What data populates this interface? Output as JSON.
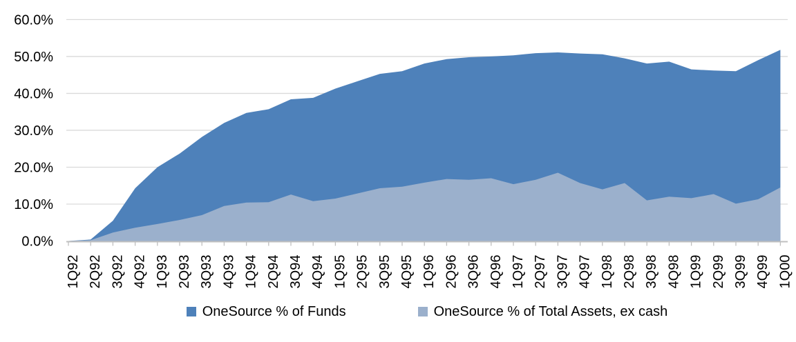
{
  "chart_data": {
    "type": "area",
    "title": "",
    "categories": [
      "1Q92",
      "2Q92",
      "3Q92",
      "4Q92",
      "1Q93",
      "2Q93",
      "3Q93",
      "4Q93",
      "1Q94",
      "2Q94",
      "3Q94",
      "4Q94",
      "1Q95",
      "2Q95",
      "3Q95",
      "4Q95",
      "1Q96",
      "2Q96",
      "3Q96",
      "4Q96",
      "1Q97",
      "2Q97",
      "3Q97",
      "4Q97",
      "1Q98",
      "2Q98",
      "3Q98",
      "4Q98",
      "1Q99",
      "2Q99",
      "3Q99",
      "4Q99",
      "1Q00"
    ],
    "series": [
      {
        "name": "OneSource % of Funds",
        "color": "#4E81BA",
        "values": [
          0,
          0.4,
          5.5,
          14.3,
          20.0,
          23.7,
          28.2,
          32.0,
          34.7,
          35.7,
          38.4,
          38.8,
          41.3,
          43.3,
          45.3,
          46.0,
          48.1,
          49.3,
          49.8,
          50.0,
          50.3,
          50.9,
          51.1,
          50.8,
          50.6,
          49.5,
          48.1,
          48.6,
          46.5,
          46.2,
          46.0,
          49.0,
          51.8
        ]
      },
      {
        "name": "OneSource % of Total Assets, ex cash",
        "color": "#9BB0CC",
        "values": [
          0,
          0.2,
          2.3,
          3.6,
          4.6,
          5.7,
          7.0,
          9.5,
          10.4,
          10.5,
          12.6,
          10.8,
          11.5,
          12.9,
          14.3,
          14.7,
          15.8,
          16.8,
          16.6,
          17.0,
          15.4,
          16.6,
          18.5,
          15.7,
          14.0,
          15.7,
          11.0,
          12.0,
          11.6,
          12.7,
          10.1,
          11.3,
          14.5
        ]
      }
    ],
    "xlabel": "",
    "ylabel": "",
    "ylim": [
      0,
      60
    ],
    "ytick_step": 10,
    "ytick_labels": [
      "0.0%",
      "10.0%",
      "20.0%",
      "30.0%",
      "40.0%",
      "50.0%",
      "60.0%"
    ],
    "grid": true,
    "grid_color": "#D9D9D9",
    "axis_color": "#BFBFBF",
    "text_color": "#000000",
    "legend_position": "bottom"
  }
}
